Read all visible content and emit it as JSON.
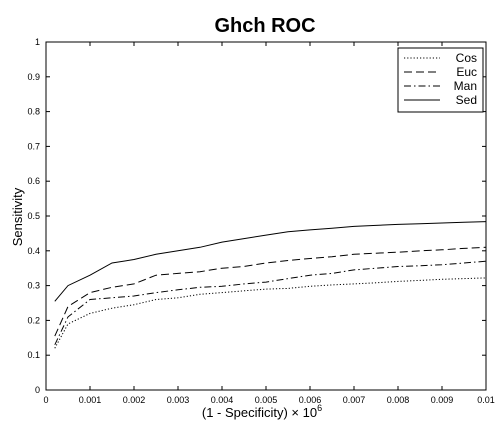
{
  "chart_data": {
    "type": "line",
    "title": "Ghch ROC",
    "xlabel": "(1 - Specificity) × 10",
    "xlabel_exponent": "6",
    "ylabel": "Sensitivity",
    "xlim": [
      0,
      0.01
    ],
    "ylim": [
      0,
      1
    ],
    "xticks": [
      "0",
      "0.001",
      "0.002",
      "0.003",
      "0.004",
      "0.005",
      "0.006",
      "0.007",
      "0.008",
      "0.009",
      "0.01"
    ],
    "yticks": [
      "0",
      "0.1",
      "0.2",
      "0.3",
      "0.4",
      "0.5",
      "0.6",
      "0.7",
      "0.8",
      "0.9",
      "1"
    ],
    "grid": false,
    "legend_position": "top-right",
    "x": [
      0.0002,
      0.0005,
      0.001,
      0.0015,
      0.002,
      0.0025,
      0.003,
      0.0035,
      0.004,
      0.0045,
      0.005,
      0.0055,
      0.006,
      0.0065,
      0.007,
      0.0075,
      0.008,
      0.0085,
      0.009,
      0.0095,
      0.01
    ],
    "series": [
      {
        "name": "Cos",
        "style": "dotted",
        "values": [
          0.12,
          0.19,
          0.22,
          0.235,
          0.245,
          0.26,
          0.265,
          0.275,
          0.28,
          0.285,
          0.29,
          0.292,
          0.298,
          0.302,
          0.305,
          0.308,
          0.312,
          0.315,
          0.318,
          0.32,
          0.322
        ]
      },
      {
        "name": "Euc",
        "style": "dashed",
        "values": [
          0.155,
          0.24,
          0.28,
          0.295,
          0.305,
          0.33,
          0.335,
          0.34,
          0.35,
          0.355,
          0.365,
          0.372,
          0.378,
          0.383,
          0.39,
          0.393,
          0.396,
          0.4,
          0.403,
          0.407,
          0.41
        ]
      },
      {
        "name": "Man",
        "style": "dashdot",
        "values": [
          0.13,
          0.21,
          0.26,
          0.265,
          0.27,
          0.28,
          0.288,
          0.295,
          0.298,
          0.305,
          0.31,
          0.32,
          0.33,
          0.335,
          0.345,
          0.35,
          0.355,
          0.357,
          0.36,
          0.365,
          0.37
        ]
      },
      {
        "name": "Sed",
        "style": "solid",
        "values": [
          0.255,
          0.3,
          0.33,
          0.365,
          0.375,
          0.39,
          0.4,
          0.41,
          0.425,
          0.435,
          0.445,
          0.455,
          0.46,
          0.465,
          0.47,
          0.473,
          0.476,
          0.478,
          0.48,
          0.482,
          0.484
        ]
      }
    ]
  }
}
